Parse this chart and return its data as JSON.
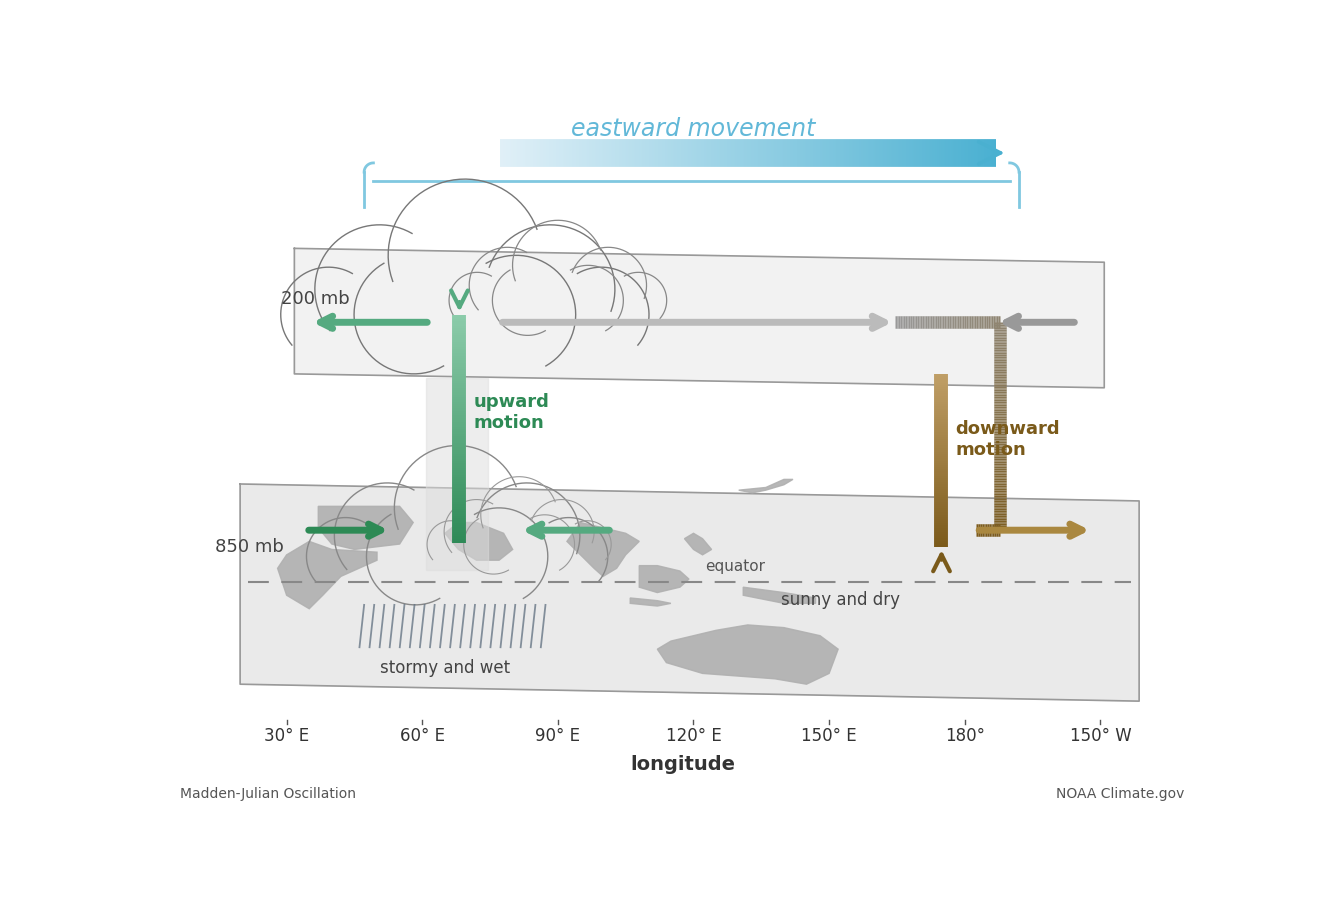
{
  "title": "eastward movement",
  "title_color": "#62b8d8",
  "xlabel": "longitude",
  "xtick_labels": [
    "30° E",
    "60° E",
    "90° E",
    "120° E",
    "150° E",
    "180°",
    "150° W"
  ],
  "bottom_left": "Madden-Julian Oscillation",
  "bottom_right": "NOAA Climate.gov",
  "label_200mb": "200 mb",
  "label_850mb": "850 mb",
  "label_upward": "upward\nmotion",
  "label_downward": "downward\nmotion",
  "label_equator": "equator",
  "label_stormy": "stormy and wet",
  "label_sunny": "sunny and dry",
  "green_dark": "#2d8a55",
  "green_mid": "#55aa80",
  "green_light": "#90ccaa",
  "brown_dark": "#7a5a1a",
  "brown_mid": "#aa8840",
  "brown_light": "#ccaa70",
  "gray_dark": "#888888",
  "gray_light": "#bbbbbb",
  "blue_arrow": "#4ab0d0",
  "blue_brace": "#80c8e0",
  "plane_fill": "#f0f0f0",
  "plane_edge": "#999999",
  "bg": "#ffffff",
  "tick_positions": [
    155,
    330,
    505,
    680,
    855,
    1030,
    1205
  ]
}
